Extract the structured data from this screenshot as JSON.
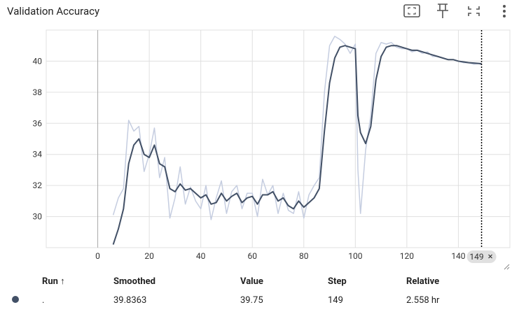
{
  "chart_data": {
    "type": "line",
    "title": "Validation Accuracy",
    "x": [
      6,
      8,
      10,
      12,
      14,
      16,
      18,
      20,
      22,
      24,
      26,
      28,
      30,
      32,
      34,
      36,
      38,
      40,
      42,
      44,
      46,
      48,
      50,
      52,
      54,
      56,
      58,
      60,
      62,
      64,
      66,
      68,
      70,
      72,
      74,
      76,
      78,
      80,
      82,
      84,
      86,
      88,
      90,
      92,
      94,
      96,
      98,
      100,
      101,
      102,
      104,
      106,
      108,
      110,
      112,
      114,
      116,
      118,
      120,
      122,
      124,
      126,
      128,
      130,
      132,
      134,
      136,
      138,
      140,
      142,
      144,
      146,
      148,
      149
    ],
    "series": [
      {
        "name": "Value",
        "color": "#c5cde0",
        "values": [
          30.1,
          31.2,
          31.8,
          36.2,
          35.5,
          35.8,
          32.9,
          34.0,
          35.7,
          32.5,
          33.8,
          29.9,
          31.2,
          33.2,
          30.8,
          31.9,
          31.0,
          30.5,
          32.0,
          29.8,
          31.2,
          32.3,
          30.2,
          31.6,
          32.0,
          30.5,
          31.5,
          31.5,
          30.0,
          32.4,
          31.4,
          32.0,
          30.2,
          31.5,
          30.4,
          30.2,
          31.6,
          29.9,
          31.4,
          32.0,
          32.5,
          38.0,
          41.0,
          41.6,
          41.4,
          41.1,
          40.5,
          41.1,
          33.0,
          30.2,
          34.3,
          36.5,
          40.5,
          41.2,
          41.1,
          41.2,
          40.9,
          40.8,
          40.8,
          40.6,
          40.7,
          40.5,
          40.6,
          40.3,
          40.3,
          40.2,
          40.1,
          40.1,
          40.0,
          39.9,
          39.9,
          39.8,
          39.85,
          39.75
        ]
      },
      {
        "name": "Smoothed",
        "color": "#425066",
        "values": [
          28.2,
          29.2,
          30.5,
          33.4,
          34.6,
          35.0,
          34.0,
          33.8,
          34.6,
          33.4,
          33.2,
          31.8,
          31.6,
          32.1,
          31.7,
          31.8,
          31.5,
          31.2,
          31.4,
          30.8,
          30.9,
          31.5,
          31.0,
          31.3,
          31.5,
          30.9,
          31.2,
          31.3,
          30.8,
          31.4,
          31.4,
          31.6,
          31.0,
          31.2,
          30.7,
          30.5,
          31.0,
          30.6,
          30.9,
          31.2,
          31.8,
          35.5,
          38.6,
          40.2,
          40.9,
          41.0,
          40.9,
          40.8,
          36.5,
          35.4,
          34.7,
          35.8,
          38.8,
          40.3,
          40.9,
          41.0,
          41.0,
          40.9,
          40.8,
          40.7,
          40.7,
          40.6,
          40.5,
          40.4,
          40.3,
          40.2,
          40.1,
          40.1,
          40.0,
          39.95,
          39.9,
          39.88,
          39.85,
          39.8363
        ]
      }
    ],
    "xlim": [
      -20,
      160
    ],
    "ylim": [
      28,
      42
    ],
    "xticks": [
      0,
      20,
      40,
      60,
      80,
      100,
      120,
      140
    ],
    "yticks": [
      30,
      32,
      34,
      36,
      38,
      40
    ],
    "grid": true
  },
  "table": {
    "headers": [
      "Run ↑",
      "Step",
      "Relative"
    ],
    "run": ".",
    "relative": "2.558 hr"
  }
}
